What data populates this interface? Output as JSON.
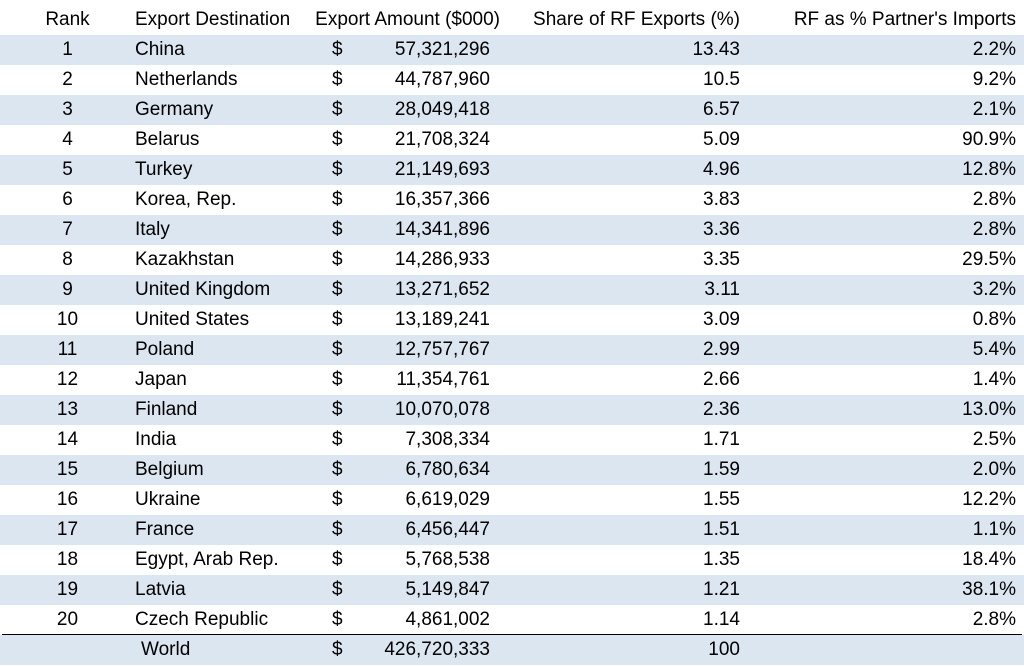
{
  "headers": {
    "rank": "Rank",
    "destination": "Export Destination",
    "amount": "Export Amount ($000)",
    "share": "Share of RF Exports (%)",
    "partner_pct": "RF as % Partner's Imports"
  },
  "currency_symbol": "$",
  "rows": [
    {
      "rank": "1",
      "destination": "China",
      "amount": "57,321,296",
      "share": "13.43",
      "partner_pct": "2.2%"
    },
    {
      "rank": "2",
      "destination": "Netherlands",
      "amount": "44,787,960",
      "share": "10.5",
      "partner_pct": "9.2%"
    },
    {
      "rank": "3",
      "destination": "Germany",
      "amount": "28,049,418",
      "share": "6.57",
      "partner_pct": "2.1%"
    },
    {
      "rank": "4",
      "destination": "Belarus",
      "amount": "21,708,324",
      "share": "5.09",
      "partner_pct": "90.9%"
    },
    {
      "rank": "5",
      "destination": "Turkey",
      "amount": "21,149,693",
      "share": "4.96",
      "partner_pct": "12.8%"
    },
    {
      "rank": "6",
      "destination": "Korea, Rep.",
      "amount": "16,357,366",
      "share": "3.83",
      "partner_pct": "2.8%"
    },
    {
      "rank": "7",
      "destination": "Italy",
      "amount": "14,341,896",
      "share": "3.36",
      "partner_pct": "2.8%"
    },
    {
      "rank": "8",
      "destination": "Kazakhstan",
      "amount": "14,286,933",
      "share": "3.35",
      "partner_pct": "29.5%"
    },
    {
      "rank": "9",
      "destination": "United Kingdom",
      "amount": "13,271,652",
      "share": "3.11",
      "partner_pct": "3.2%"
    },
    {
      "rank": "10",
      "destination": "United States",
      "amount": "13,189,241",
      "share": "3.09",
      "partner_pct": "0.8%"
    },
    {
      "rank": "11",
      "destination": "Poland",
      "amount": "12,757,767",
      "share": "2.99",
      "partner_pct": "5.4%"
    },
    {
      "rank": "12",
      "destination": "Japan",
      "amount": "11,354,761",
      "share": "2.66",
      "partner_pct": "1.4%"
    },
    {
      "rank": "13",
      "destination": "Finland",
      "amount": "10,070,078",
      "share": "2.36",
      "partner_pct": "13.0%"
    },
    {
      "rank": "14",
      "destination": "India",
      "amount": "7,308,334",
      "share": "1.71",
      "partner_pct": "2.5%"
    },
    {
      "rank": "15",
      "destination": "Belgium",
      "amount": "6,780,634",
      "share": "1.59",
      "partner_pct": "2.0%"
    },
    {
      "rank": "16",
      "destination": "Ukraine",
      "amount": "6,619,029",
      "share": "1.55",
      "partner_pct": "12.2%"
    },
    {
      "rank": "17",
      "destination": "France",
      "amount": "6,456,447",
      "share": "1.51",
      "partner_pct": "1.1%"
    },
    {
      "rank": "18",
      "destination": "Egypt, Arab Rep.",
      "amount": "5,768,538",
      "share": "1.35",
      "partner_pct": "18.4%"
    },
    {
      "rank": "19",
      "destination": "Latvia",
      "amount": "5,149,847",
      "share": "1.21",
      "partner_pct": "38.1%"
    },
    {
      "rank": "20",
      "destination": "Czech Republic",
      "amount": "4,861,002",
      "share": "1.14",
      "partner_pct": "2.8%"
    }
  ],
  "total": {
    "destination": "World",
    "amount": "426,720,333",
    "share": "100",
    "partner_pct": ""
  },
  "colors": {
    "band": "#dce6f1",
    "text": "#000000",
    "background": "#ffffff"
  }
}
